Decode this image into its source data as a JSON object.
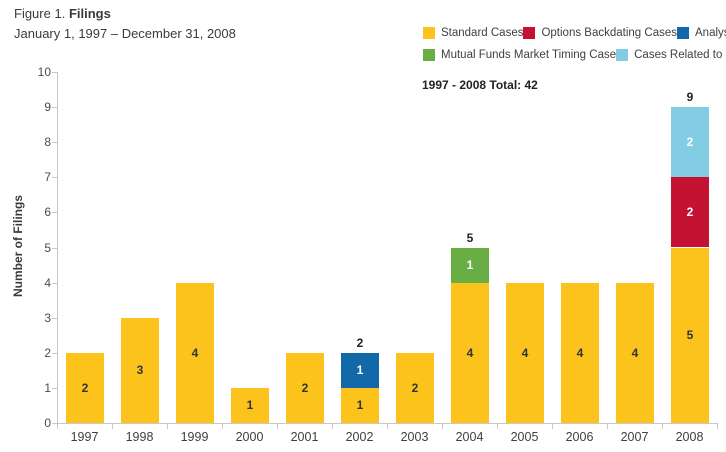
{
  "header": {
    "figure_label": "Figure 1.",
    "figure_title": "Filings",
    "date_range": "January 1, 1997 – December 31, 2008"
  },
  "total_note": "1997 - 2008 Total: 42",
  "legend": {
    "rows": [
      [
        "Standard Cases",
        "Options Backdating Cases",
        "Analyst Case"
      ],
      [
        "Mutual Funds Market Timing Case",
        "Cases Related to Credit Crisis"
      ]
    ]
  },
  "colors": {
    "axis": "#C8C8C8",
    "standard": "#FBC31C",
    "options_backdating": "#C41232",
    "analyst": "#1268A8",
    "mutual_funds": "#69AE44",
    "credit_crisis": "#82CCE4"
  },
  "chart_data": {
    "type": "bar",
    "stacked": true,
    "title": "Figure 1. Filings",
    "subtitle": "January 1, 1997 – December 31, 2008",
    "xlabel": "",
    "ylabel": "Number of Filings",
    "ylim": [
      0,
      10
    ],
    "ytick_step": 1,
    "grid": false,
    "legend_position": "top-right",
    "total_note": "1997 - 2008 Total: 42",
    "categories": [
      "1997",
      "1998",
      "1999",
      "2000",
      "2001",
      "2002",
      "2003",
      "2004",
      "2005",
      "2006",
      "2007",
      "2008"
    ],
    "series": [
      {
        "name": "Standard Cases",
        "color": "#FBC31C",
        "label_color": "#333333",
        "values": [
          2,
          3,
          4,
          1,
          2,
          1,
          2,
          4,
          4,
          4,
          4,
          5
        ]
      },
      {
        "name": "Options Backdating Cases",
        "color": "#C41232",
        "label_color": "#FFFFFF",
        "values": [
          0,
          0,
          0,
          0,
          0,
          0,
          0,
          0,
          0,
          0,
          0,
          2
        ]
      },
      {
        "name": "Analyst Case",
        "color": "#1268A8",
        "label_color": "#FFFFFF",
        "values": [
          0,
          0,
          0,
          0,
          0,
          1,
          0,
          0,
          0,
          0,
          0,
          0
        ]
      },
      {
        "name": "Mutual Funds Market Timing Case",
        "color": "#69AE44",
        "label_color": "#FFFFFF",
        "values": [
          0,
          0,
          0,
          0,
          0,
          0,
          0,
          1,
          0,
          0,
          0,
          0
        ]
      },
      {
        "name": "Cases Related to Credit Crisis",
        "color": "#82CCE4",
        "label_color": "#FFFFFF",
        "values": [
          0,
          0,
          0,
          0,
          0,
          0,
          0,
          0,
          0,
          0,
          0,
          2
        ]
      }
    ],
    "stack_total_labels": {
      "2002": "2",
      "2004": "5",
      "2008": "9"
    }
  }
}
